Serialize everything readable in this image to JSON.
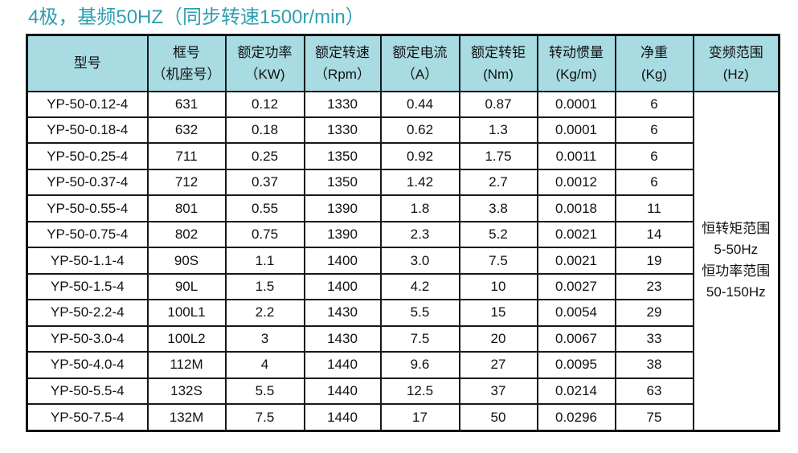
{
  "title": "4极，基频50HZ（同步转速1500r/min）",
  "colors": {
    "title_text": "#2f9fb0",
    "header_bg": "#a8dbe2",
    "border": "#15191b",
    "body_text": "#111111",
    "cell_bg": "#ffffff"
  },
  "table": {
    "columns": [
      {
        "line1": "型号",
        "line2": ""
      },
      {
        "line1": "框号",
        "line2": "（机座号）"
      },
      {
        "line1": "额定功率",
        "line2": "（KW)"
      },
      {
        "line1": "额定转速",
        "line2": "（Rpm）"
      },
      {
        "line1": "额定电流",
        "line2": "（A）"
      },
      {
        "line1": "额定转钜",
        "line2": "(Nm)"
      },
      {
        "line1": "转动惯量",
        "line2": "(Kg/m)"
      },
      {
        "line1": "净重",
        "line2": "(Kg)"
      },
      {
        "line1": "变频范围",
        "line2": "(Hz)"
      }
    ],
    "rows": [
      [
        "YP-50-0.12-4",
        "631",
        "0.12",
        "1330",
        "0.44",
        "0.87",
        "0.0001",
        "6"
      ],
      [
        "YP-50-0.18-4",
        "632",
        "0.18",
        "1330",
        "0.62",
        "1.3",
        "0.0001",
        "6"
      ],
      [
        "YP-50-0.25-4",
        "711",
        "0.25",
        "1350",
        "0.92",
        "1.75",
        "0.0011",
        "6"
      ],
      [
        "YP-50-0.37-4",
        "712",
        "0.37",
        "1350",
        "1.42",
        "2.7",
        "0.0012",
        "6"
      ],
      [
        "YP-50-0.55-4",
        "801",
        "0.55",
        "1390",
        "1.8",
        "3.8",
        "0.0018",
        "11"
      ],
      [
        "YP-50-0.75-4",
        "802",
        "0.75",
        "1390",
        "2.3",
        "5.2",
        "0.0021",
        "14"
      ],
      [
        "YP-50-1.1-4",
        "90S",
        "1.1",
        "1400",
        "3.0",
        "7.5",
        "0.0021",
        "19"
      ],
      [
        "YP-50-1.5-4",
        "90L",
        "1.5",
        "1400",
        "4.2",
        "10",
        "0.0027",
        "23"
      ],
      [
        "YP-50-2.2-4",
        "100L1",
        "2.2",
        "1430",
        "5.5",
        "15",
        "0.0054",
        "29"
      ],
      [
        "YP-50-3.0-4",
        "100L2",
        "3",
        "1430",
        "7.5",
        "20",
        "0.0067",
        "33"
      ],
      [
        "YP-50-4.0-4",
        "112M",
        "4",
        "1440",
        "9.6",
        "27",
        "0.0095",
        "38"
      ],
      [
        "YP-50-5.5-4",
        "132S",
        "5.5",
        "1440",
        "12.5",
        "37",
        "0.0214",
        "63"
      ],
      [
        "YP-50-7.5-4",
        "132M",
        "7.5",
        "1440",
        "17",
        "50",
        "0.0296",
        "75"
      ]
    ],
    "freq_note": [
      "恒转矩范围",
      "5-50Hz",
      "恒功率范围",
      "50-150Hz"
    ]
  }
}
